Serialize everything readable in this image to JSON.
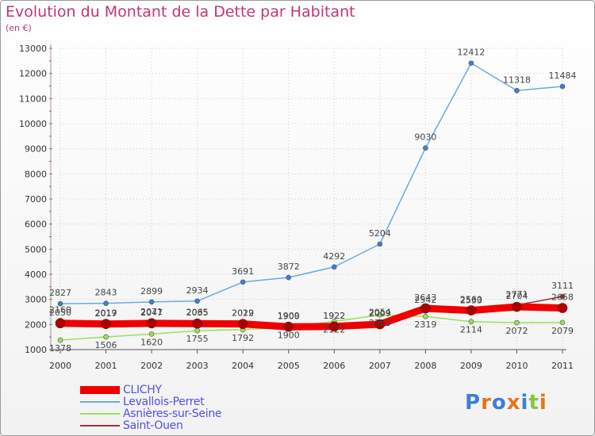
{
  "header": {
    "title": "Evolution du Montant de la Dette par Habitant",
    "subtitle": "(en €)"
  },
  "logo": {
    "text": "Proxiti"
  },
  "colors": {
    "title": "#c0357a",
    "legend_text": "#5050ee",
    "grid": "#cccccc",
    "axis": "#555555"
  },
  "chart_data": {
    "type": "line",
    "title": "Evolution du Montant de la Dette par Habitant",
    "subtitle": "(en €)",
    "xlabel": "",
    "ylabel": "",
    "x": [
      "2000",
      "2001",
      "2002",
      "2003",
      "2004",
      "2005",
      "2006",
      "2007",
      "2008",
      "2009",
      "2010",
      "2011"
    ],
    "ylim": [
      1000,
      13000
    ],
    "yticks": [
      1000,
      2000,
      3000,
      4000,
      5000,
      6000,
      7000,
      8000,
      9000,
      10000,
      11000,
      12000,
      13000
    ],
    "grid": true,
    "legend_position": "bottom-left",
    "series": [
      {
        "name": "CLICHY",
        "color": "#ee0000",
        "values": [
          2050,
          2019,
          2047,
          2035,
          2022,
          1909,
          1922,
          2009,
          2643,
          2560,
          2704,
          2658
        ]
      },
      {
        "name": "Levallois-Perret",
        "color": "#6fa8dc",
        "values": [
          2827,
          2843,
          2899,
          2934,
          3691,
          3872,
          4292,
          5204,
          9030,
          12412,
          11318,
          11484
        ]
      },
      {
        "name": "Asnières-sur-Seine",
        "color": "#99e05a",
        "values": [
          1378,
          1506,
          1620,
          1755,
          1792,
          1900,
          2122,
          2383,
          2319,
          2114,
          2072,
          2079
        ]
      },
      {
        "name": "Saint-Ouen",
        "color": "#993333",
        "values": [
          2160,
          2017,
          2071,
          2065,
          2019,
          1900,
          1922,
          2054,
          2542,
          2533,
          2771,
          3111
        ]
      }
    ]
  }
}
